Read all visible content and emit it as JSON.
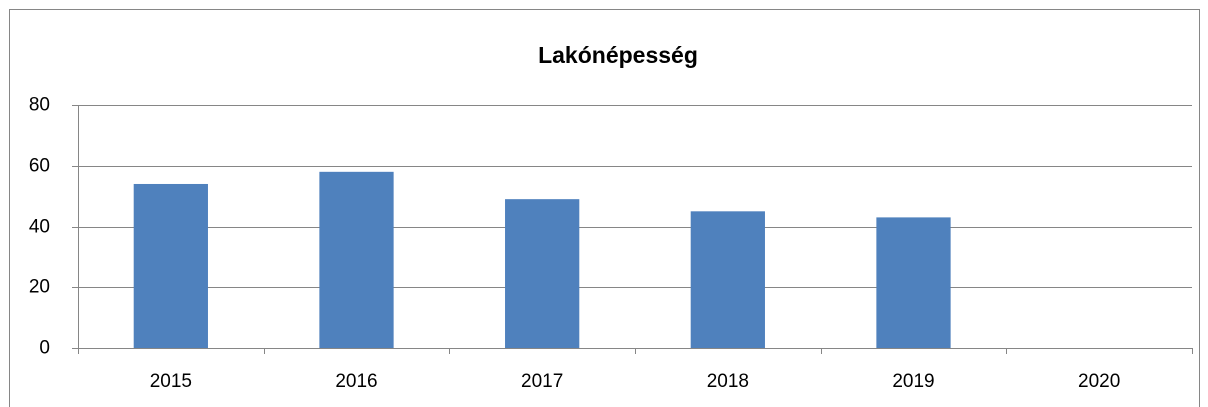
{
  "chart_data": {
    "type": "bar",
    "title": "Lakónépesség",
    "categories": [
      "2015",
      "2016",
      "2017",
      "2018",
      "2019",
      "2020"
    ],
    "values": [
      54,
      58,
      49,
      45,
      43,
      null
    ],
    "color": "#4f81bd",
    "ylim": [
      0,
      80
    ],
    "yticks": [
      0,
      20,
      40,
      60,
      80
    ],
    "grid": true
  }
}
